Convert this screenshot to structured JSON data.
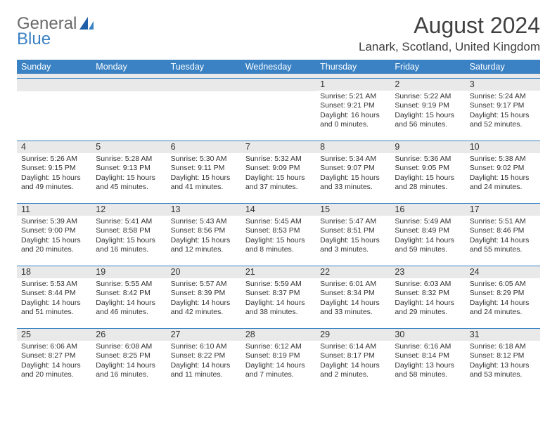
{
  "logo": {
    "general": "General",
    "blue": "Blue"
  },
  "title": "August 2024",
  "location": "Lanark, Scotland, United Kingdom",
  "colors": {
    "header_bg": "#3a82c4",
    "header_text": "#ffffff",
    "band_bg": "#e9e9e9",
    "text": "#333333",
    "rule": "#3a82c4",
    "logo_gray": "#6a6a6a",
    "logo_blue": "#3a82c4"
  },
  "fonts": {
    "title_size_pt": 24,
    "location_size_pt": 13,
    "dow_size_pt": 9,
    "daynum_size_pt": 9,
    "body_size_pt": 8
  },
  "dow": [
    "Sunday",
    "Monday",
    "Tuesday",
    "Wednesday",
    "Thursday",
    "Friday",
    "Saturday"
  ],
  "weeks": [
    [
      {
        "n": "",
        "sr": "",
        "ss": "",
        "dl": ""
      },
      {
        "n": "",
        "sr": "",
        "ss": "",
        "dl": ""
      },
      {
        "n": "",
        "sr": "",
        "ss": "",
        "dl": ""
      },
      {
        "n": "",
        "sr": "",
        "ss": "",
        "dl": ""
      },
      {
        "n": "1",
        "sr": "Sunrise: 5:21 AM",
        "ss": "Sunset: 9:21 PM",
        "dl": "Daylight: 16 hours and 0 minutes."
      },
      {
        "n": "2",
        "sr": "Sunrise: 5:22 AM",
        "ss": "Sunset: 9:19 PM",
        "dl": "Daylight: 15 hours and 56 minutes."
      },
      {
        "n": "3",
        "sr": "Sunrise: 5:24 AM",
        "ss": "Sunset: 9:17 PM",
        "dl": "Daylight: 15 hours and 52 minutes."
      }
    ],
    [
      {
        "n": "4",
        "sr": "Sunrise: 5:26 AM",
        "ss": "Sunset: 9:15 PM",
        "dl": "Daylight: 15 hours and 49 minutes."
      },
      {
        "n": "5",
        "sr": "Sunrise: 5:28 AM",
        "ss": "Sunset: 9:13 PM",
        "dl": "Daylight: 15 hours and 45 minutes."
      },
      {
        "n": "6",
        "sr": "Sunrise: 5:30 AM",
        "ss": "Sunset: 9:11 PM",
        "dl": "Daylight: 15 hours and 41 minutes."
      },
      {
        "n": "7",
        "sr": "Sunrise: 5:32 AM",
        "ss": "Sunset: 9:09 PM",
        "dl": "Daylight: 15 hours and 37 minutes."
      },
      {
        "n": "8",
        "sr": "Sunrise: 5:34 AM",
        "ss": "Sunset: 9:07 PM",
        "dl": "Daylight: 15 hours and 33 minutes."
      },
      {
        "n": "9",
        "sr": "Sunrise: 5:36 AM",
        "ss": "Sunset: 9:05 PM",
        "dl": "Daylight: 15 hours and 28 minutes."
      },
      {
        "n": "10",
        "sr": "Sunrise: 5:38 AM",
        "ss": "Sunset: 9:02 PM",
        "dl": "Daylight: 15 hours and 24 minutes."
      }
    ],
    [
      {
        "n": "11",
        "sr": "Sunrise: 5:39 AM",
        "ss": "Sunset: 9:00 PM",
        "dl": "Daylight: 15 hours and 20 minutes."
      },
      {
        "n": "12",
        "sr": "Sunrise: 5:41 AM",
        "ss": "Sunset: 8:58 PM",
        "dl": "Daylight: 15 hours and 16 minutes."
      },
      {
        "n": "13",
        "sr": "Sunrise: 5:43 AM",
        "ss": "Sunset: 8:56 PM",
        "dl": "Daylight: 15 hours and 12 minutes."
      },
      {
        "n": "14",
        "sr": "Sunrise: 5:45 AM",
        "ss": "Sunset: 8:53 PM",
        "dl": "Daylight: 15 hours and 8 minutes."
      },
      {
        "n": "15",
        "sr": "Sunrise: 5:47 AM",
        "ss": "Sunset: 8:51 PM",
        "dl": "Daylight: 15 hours and 3 minutes."
      },
      {
        "n": "16",
        "sr": "Sunrise: 5:49 AM",
        "ss": "Sunset: 8:49 PM",
        "dl": "Daylight: 14 hours and 59 minutes."
      },
      {
        "n": "17",
        "sr": "Sunrise: 5:51 AM",
        "ss": "Sunset: 8:46 PM",
        "dl": "Daylight: 14 hours and 55 minutes."
      }
    ],
    [
      {
        "n": "18",
        "sr": "Sunrise: 5:53 AM",
        "ss": "Sunset: 8:44 PM",
        "dl": "Daylight: 14 hours and 51 minutes."
      },
      {
        "n": "19",
        "sr": "Sunrise: 5:55 AM",
        "ss": "Sunset: 8:42 PM",
        "dl": "Daylight: 14 hours and 46 minutes."
      },
      {
        "n": "20",
        "sr": "Sunrise: 5:57 AM",
        "ss": "Sunset: 8:39 PM",
        "dl": "Daylight: 14 hours and 42 minutes."
      },
      {
        "n": "21",
        "sr": "Sunrise: 5:59 AM",
        "ss": "Sunset: 8:37 PM",
        "dl": "Daylight: 14 hours and 38 minutes."
      },
      {
        "n": "22",
        "sr": "Sunrise: 6:01 AM",
        "ss": "Sunset: 8:34 PM",
        "dl": "Daylight: 14 hours and 33 minutes."
      },
      {
        "n": "23",
        "sr": "Sunrise: 6:03 AM",
        "ss": "Sunset: 8:32 PM",
        "dl": "Daylight: 14 hours and 29 minutes."
      },
      {
        "n": "24",
        "sr": "Sunrise: 6:05 AM",
        "ss": "Sunset: 8:29 PM",
        "dl": "Daylight: 14 hours and 24 minutes."
      }
    ],
    [
      {
        "n": "25",
        "sr": "Sunrise: 6:06 AM",
        "ss": "Sunset: 8:27 PM",
        "dl": "Daylight: 14 hours and 20 minutes."
      },
      {
        "n": "26",
        "sr": "Sunrise: 6:08 AM",
        "ss": "Sunset: 8:25 PM",
        "dl": "Daylight: 14 hours and 16 minutes."
      },
      {
        "n": "27",
        "sr": "Sunrise: 6:10 AM",
        "ss": "Sunset: 8:22 PM",
        "dl": "Daylight: 14 hours and 11 minutes."
      },
      {
        "n": "28",
        "sr": "Sunrise: 6:12 AM",
        "ss": "Sunset: 8:19 PM",
        "dl": "Daylight: 14 hours and 7 minutes."
      },
      {
        "n": "29",
        "sr": "Sunrise: 6:14 AM",
        "ss": "Sunset: 8:17 PM",
        "dl": "Daylight: 14 hours and 2 minutes."
      },
      {
        "n": "30",
        "sr": "Sunrise: 6:16 AM",
        "ss": "Sunset: 8:14 PM",
        "dl": "Daylight: 13 hours and 58 minutes."
      },
      {
        "n": "31",
        "sr": "Sunrise: 6:18 AM",
        "ss": "Sunset: 8:12 PM",
        "dl": "Daylight: 13 hours and 53 minutes."
      }
    ]
  ]
}
